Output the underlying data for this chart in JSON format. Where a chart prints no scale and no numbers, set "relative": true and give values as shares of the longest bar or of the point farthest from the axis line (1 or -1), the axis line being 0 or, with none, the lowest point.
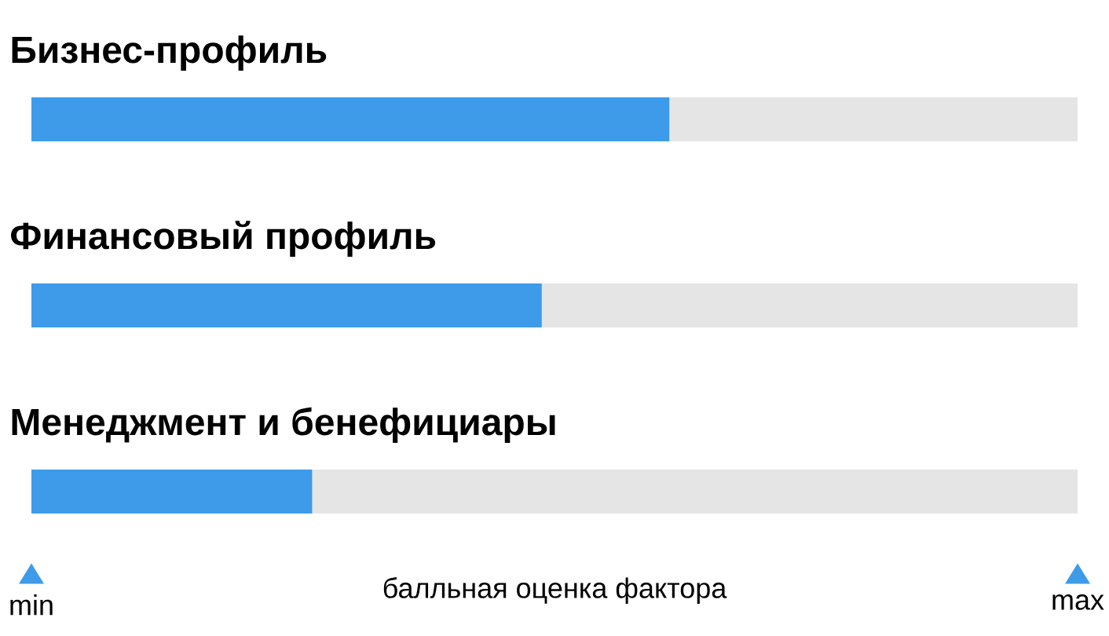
{
  "chart_data": {
    "type": "bar",
    "orientation": "horizontal",
    "relative": true,
    "categories": [
      "Бизнес-профиль",
      "Финансовый профиль",
      "Менеджмент и бенефициары"
    ],
    "values": [
      1,
      0.8,
      0.44
    ],
    "color": "#3d9be9",
    "bands": [
      {
        "axis": "x",
        "from": 0,
        "to": 1.64,
        "color": "#e5e5e5"
      }
    ],
    "xlabel": "балльная оценка фактора",
    "annotations": [
      "min",
      "max"
    ]
  }
}
